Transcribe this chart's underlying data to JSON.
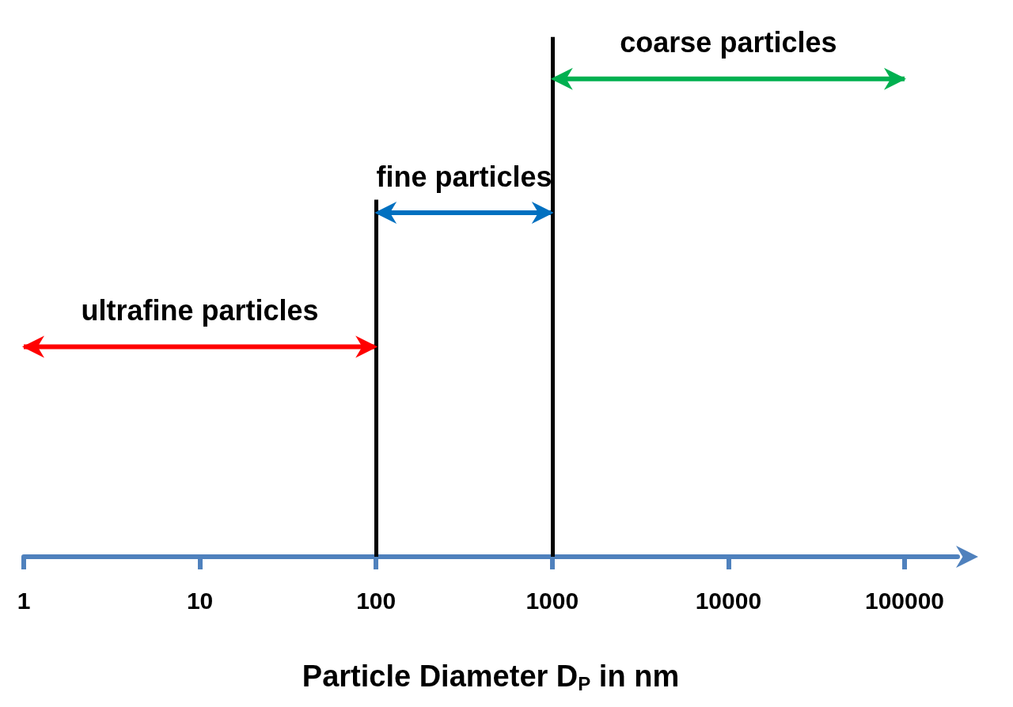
{
  "chart_data": {
    "type": "bar",
    "orientation": "horizontal",
    "xlabel": "Particle Diameter D$_{P}$ in nm",
    "log": "x",
    "xlim": [
      1,
      200000
    ],
    "xticks": [
      1,
      10,
      100,
      1000,
      10000,
      100000
    ],
    "tick_labels": "x",
    "categories": [
      "coarse particles",
      "fine particles",
      "ultrafine particles"
    ],
    "base": [
      1000,
      100,
      1
    ],
    "values": [
      99000,
      900,
      99
    ],
    "colors": [
      "#00b050",
      "#0070c0",
      "#ff0000"
    ],
    "ref_lines": [
      {
        "axis": "x",
        "value": 100
      },
      {
        "axis": "x",
        "value": 1000
      }
    ]
  }
}
